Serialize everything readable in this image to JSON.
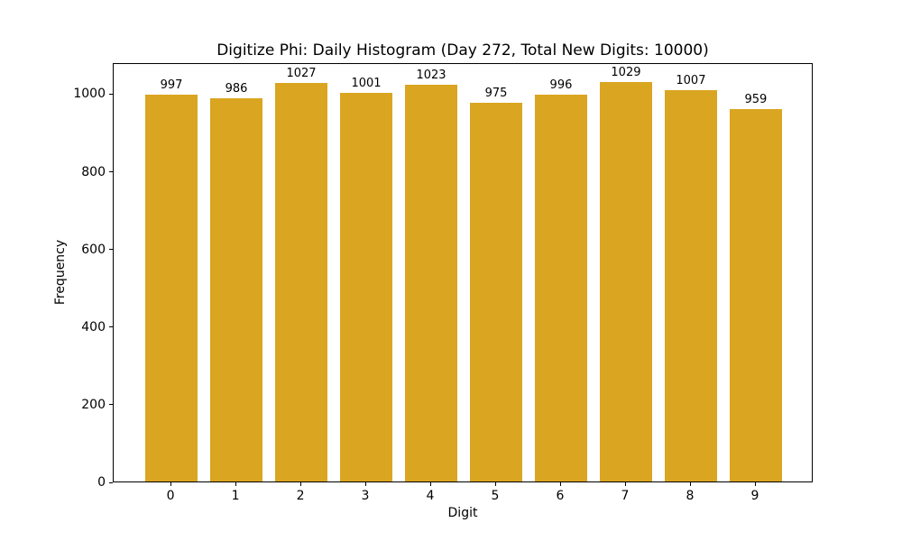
{
  "chart_data": {
    "type": "bar",
    "title": "Digitize Phi: Daily Histogram (Day 272, Total New Digits: 10000)",
    "xlabel": "Digit",
    "ylabel": "Frequency",
    "categories": [
      "0",
      "1",
      "2",
      "3",
      "4",
      "5",
      "6",
      "7",
      "8",
      "9"
    ],
    "values": [
      997,
      986,
      1027,
      1001,
      1023,
      975,
      996,
      1029,
      1007,
      959
    ],
    "yticks": [
      0,
      200,
      400,
      600,
      800,
      1000
    ],
    "ylim": [
      0,
      1080
    ],
    "xlim": [
      -0.89,
      9.89
    ],
    "bar_width": 0.8,
    "bar_color": "#DAA520",
    "text_color": "#000000",
    "grid": false,
    "legend": null
  }
}
